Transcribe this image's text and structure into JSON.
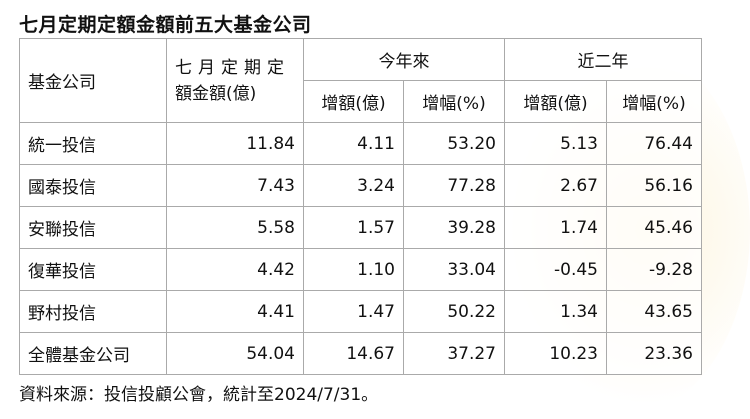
{
  "title": "七月定期定額金額前五大基金公司",
  "header": {
    "company": "基金公司",
    "amount_line1": "七月定期定",
    "amount_line2": "額金額(億)",
    "ytd": "今年來",
    "two_years": "近二年",
    "ytd_increase": "增額(億)",
    "ytd_growth": "增幅(%)",
    "two_years_increase": "增額(億)",
    "two_years_growth": "增幅(%)"
  },
  "rows": [
    {
      "company": "統一投信",
      "amount": "11.84",
      "ytd_increase": "4.11",
      "ytd_growth": "53.20",
      "two_years_increase": "5.13",
      "two_years_growth": "76.44"
    },
    {
      "company": "國泰投信",
      "amount": "7.43",
      "ytd_increase": "3.24",
      "ytd_growth": "77.28",
      "two_years_increase": "2.67",
      "two_years_growth": "56.16"
    },
    {
      "company": "安聯投信",
      "amount": "5.58",
      "ytd_increase": "1.57",
      "ytd_growth": "39.28",
      "two_years_increase": "1.74",
      "two_years_growth": "45.46"
    },
    {
      "company": "復華投信",
      "amount": "4.42",
      "ytd_increase": "1.10",
      "ytd_growth": "33.04",
      "two_years_increase": "-0.45",
      "two_years_growth": "-9.28"
    },
    {
      "company": "野村投信",
      "amount": "4.41",
      "ytd_increase": "1.47",
      "ytd_growth": "50.22",
      "two_years_increase": "1.34",
      "two_years_growth": "43.65"
    },
    {
      "company": "全體基金公司",
      "amount": "54.04",
      "ytd_increase": "14.67",
      "ytd_growth": "37.27",
      "two_years_increase": "10.23",
      "two_years_growth": "23.36"
    }
  ],
  "source": "資料來源：投信投顧公會，統計至2024/7/31。"
}
